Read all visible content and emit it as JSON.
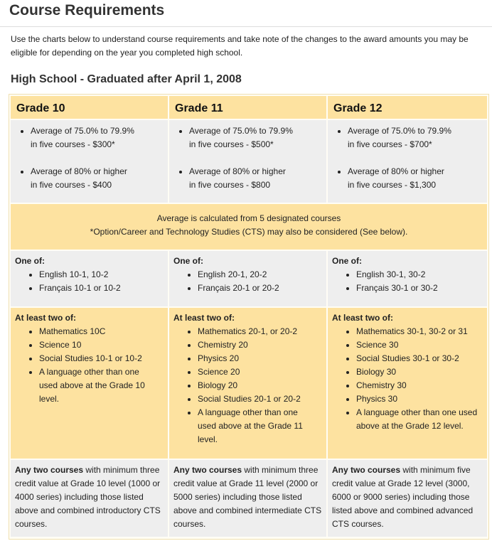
{
  "title": "Course Requirements",
  "intro": "Use the charts below to understand course requirements and take note of the changes to the award amounts you may be eligible for depending on the year you completed high school.",
  "section_title": "High School - Graduated after April 1, 2008",
  "grades": [
    {
      "header": "Grade 10",
      "averages": [
        [
          "Average of 75.0% to 79.9%",
          "in five courses - $300*"
        ],
        [
          "Average of 80% or higher",
          "in five courses - $400"
        ]
      ],
      "one_of_label": "One of:",
      "one_of": [
        "English 10-1, 10-2",
        "Français 10-1 or 10-2"
      ],
      "two_of_label": "At least two of:",
      "two_of": [
        "Mathematics 10C",
        "Science 10",
        "Social Studies 10-1 or 10-2",
        "A language other than one used above at the Grade 10 level."
      ],
      "any_bold": "Any two courses",
      "any_rest": " with minimum three credit value at Grade 10 level (1000 or 4000 series) including those listed above and combined introductory CTS courses."
    },
    {
      "header": "Grade 11",
      "averages": [
        [
          "Average of 75.0% to 79.9%",
          "in five courses - $500*"
        ],
        [
          "Average of 80% or higher",
          "in five courses - $800"
        ]
      ],
      "one_of_label": "One of:",
      "one_of": [
        "English 20-1, 20-2",
        "Français 20-1 or 20-2"
      ],
      "two_of_label": "At least two of:",
      "two_of": [
        "Mathematics 20-1, or 20-2",
        "Chemistry 20",
        "Physics 20",
        "Science 20",
        "Biology 20",
        "Social Studies 20-1 or 20-2",
        "A language other than one used above at the Grade 11 level."
      ],
      "any_bold": "Any two courses",
      "any_rest": " with minimum three credit value at Grade 11 level (2000 or 5000 series) including those listed above and combined intermediate CTS courses."
    },
    {
      "header": "Grade 12",
      "averages": [
        [
          "Average of 75.0% to 79.9%",
          "in five courses - $700*"
        ],
        [
          "Average of 80% or higher",
          "in five courses - $1,300"
        ]
      ],
      "one_of_label": "One of:",
      "one_of": [
        "English 30-1, 30-2",
        "Français 30-1 or 30-2"
      ],
      "two_of_label": "At least two of:",
      "two_of": [
        "Mathematics 30-1, 30-2 or 31",
        "Science 30",
        "Social Studies 30-1 or 30-2",
        "Biology 30",
        "Chemistry 30",
        "Physics 30",
        "A language other than one used above at the Grade 12 level."
      ],
      "any_bold": "Any two courses",
      "any_rest": " with minimum five credit value at Grade 12 level (3000, 6000 or 9000 series) including those listed above and combined advanced CTS courses."
    }
  ],
  "note_line1": "Average is calculated from 5 designated courses",
  "note_line2": "*Option/Career and Technology Studies (CTS) may also be considered (See below).",
  "colors": {
    "header_bg": "#fde2a0",
    "gray_bg": "#eeeeee",
    "border": "#f0e0b0"
  }
}
